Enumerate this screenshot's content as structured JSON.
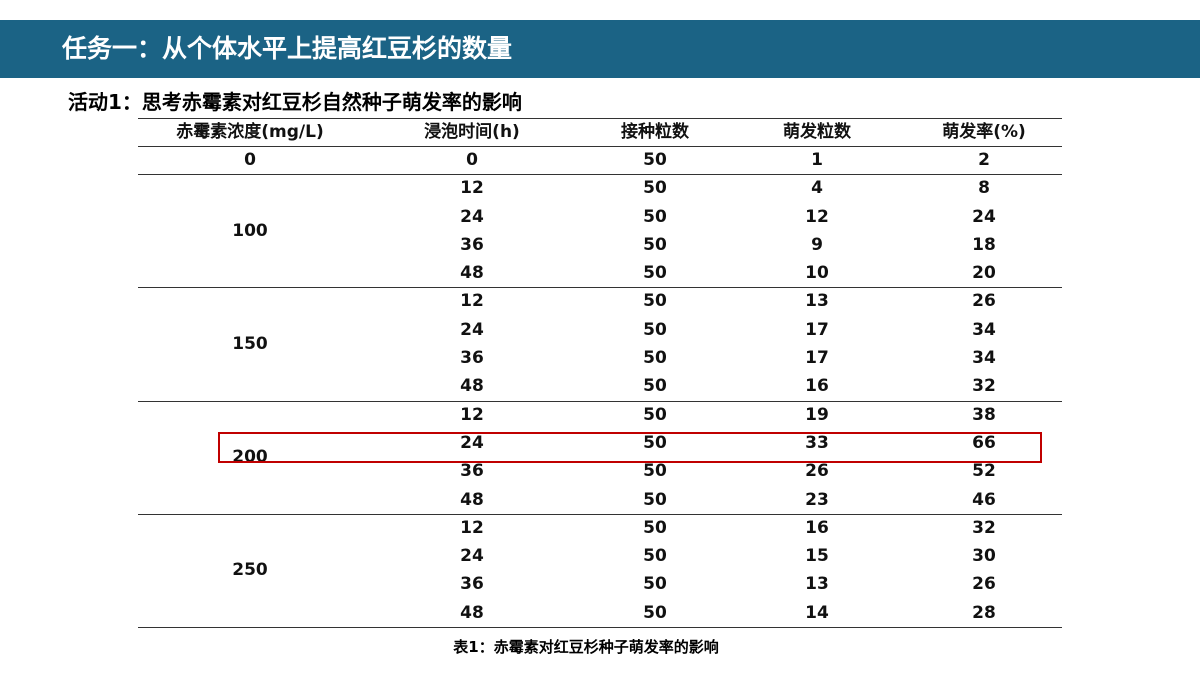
{
  "header": {
    "title": "任务一：从个体水平上提高红豆杉的数量"
  },
  "subtitle": "活动1：思考赤霉素对红豆杉自然种子萌发率的影响",
  "table": {
    "columns": [
      "赤霉素浓度(mg/L)",
      "浸泡时间(h)",
      "接种粒数",
      "萌发粒数",
      "萌发率(%)"
    ],
    "groups": [
      {
        "concentration": 0,
        "rows": [
          [
            0,
            50,
            1,
            2
          ]
        ]
      },
      {
        "concentration": 100,
        "rows": [
          [
            12,
            50,
            4,
            8
          ],
          [
            24,
            50,
            12,
            24
          ],
          [
            36,
            50,
            9,
            18
          ],
          [
            48,
            50,
            10,
            20
          ]
        ]
      },
      {
        "concentration": 150,
        "rows": [
          [
            12,
            50,
            13,
            26
          ],
          [
            24,
            50,
            17,
            34
          ],
          [
            36,
            50,
            17,
            34
          ],
          [
            48,
            50,
            16,
            32
          ]
        ]
      },
      {
        "concentration": 200,
        "rows": [
          [
            12,
            50,
            19,
            38
          ],
          [
            24,
            50,
            33,
            66
          ],
          [
            36,
            50,
            26,
            52
          ],
          [
            48,
            50,
            23,
            46
          ]
        ]
      },
      {
        "concentration": 250,
        "rows": [
          [
            12,
            50,
            16,
            32
          ],
          [
            24,
            50,
            15,
            30
          ],
          [
            36,
            50,
            13,
            26
          ],
          [
            48,
            50,
            14,
            28
          ]
        ]
      }
    ],
    "caption": "表1：赤霉素对红豆杉种子萌发率的影响"
  }
}
